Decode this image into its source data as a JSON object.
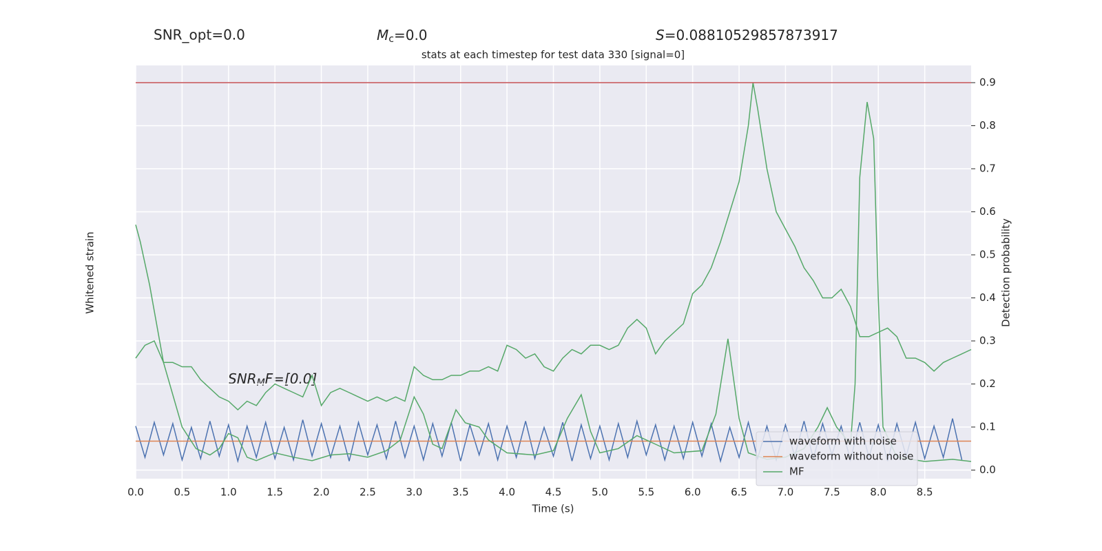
{
  "chart_data": {
    "type": "line",
    "top_labels": {
      "snr_opt": "SNR_opt=0.0",
      "mc": {
        "symbol": "M",
        "sub": "c",
        "rest": "=0.0"
      },
      "s": {
        "symbol": "S",
        "rest": "=0.08810529857873917"
      }
    },
    "title": "stats at each timestep for test data 330 [signal=0]",
    "xlabel": "Time (s)",
    "ylabel": "Whitened strain",
    "y2label": "Detection probability",
    "annotation": {
      "symbol": "SNR",
      "sub": "M",
      "rest": "F=[0.0]"
    },
    "xlim": [
      0,
      9
    ],
    "xticks": [
      {
        "value": 0,
        "label": "0.0"
      },
      0.5,
      {
        "value": 1,
        "label": "1.0"
      },
      1.5,
      {
        "value": 2,
        "label": "2.0"
      },
      2.5,
      {
        "value": 3,
        "label": "3.0"
      },
      3.5,
      {
        "value": 4,
        "label": "4.0"
      },
      4.5,
      {
        "value": 5,
        "label": "5.0"
      },
      5.5,
      {
        "value": 6,
        "label": "6.0"
      },
      6.5,
      {
        "value": 7,
        "label": "7.0"
      },
      7.5,
      {
        "value": 8,
        "label": "8.0"
      },
      8.5
    ],
    "ylim": [
      -3,
      30
    ],
    "y2lim": [
      -0.02,
      0.94
    ],
    "y2ticks": [
      {
        "value": 0,
        "label": "0.0"
      },
      0.1,
      0.2,
      0.3,
      0.4,
      0.5,
      0.6,
      0.7,
      0.8,
      0.9
    ],
    "grid": true,
    "legend": "lower right",
    "threshold": {
      "value": 0.9,
      "color": "#c44e52"
    },
    "series": [
      {
        "name": "waveform with noise",
        "color": "#4c72b0",
        "axis": "y",
        "x": [
          0,
          0.1,
          0.2,
          0.3,
          0.4,
          0.5,
          0.6,
          0.7,
          0.8,
          0.9,
          1,
          1.1,
          1.2,
          1.3,
          1.4,
          1.5,
          1.6,
          1.7,
          1.8,
          1.9,
          2,
          2.1,
          2.2,
          2.3,
          2.4,
          2.5,
          2.6,
          2.7,
          2.8,
          2.9,
          3,
          3.1,
          3.2,
          3.3,
          3.4,
          3.5,
          3.6,
          3.7,
          3.8,
          3.9,
          4,
          4.1,
          4.2,
          4.3,
          4.4,
          4.5,
          4.6,
          4.7,
          4.8,
          4.9,
          5,
          5.1,
          5.2,
          5.3,
          5.4,
          5.5,
          5.6,
          5.7,
          5.8,
          5.9,
          6,
          6.1,
          6.2,
          6.3,
          6.4,
          6.5,
          6.6,
          6.7,
          6.8,
          6.9,
          7,
          7.1,
          7.2,
          7.3,
          7.4,
          7.5,
          7.6,
          7.7,
          7.8,
          7.9,
          8,
          8.1,
          8.2,
          8.3,
          8.4,
          8.5,
          8.6,
          8.7,
          8.8,
          8.9
        ],
        "values": [
          1.2,
          -1.3,
          1.5,
          -1.1,
          1.4,
          -1.5,
          1.1,
          -1.4,
          1.6,
          -1.2,
          1.3,
          -1.6,
          1.2,
          -1.3,
          1.5,
          -1.4,
          1.1,
          -1.5,
          1.7,
          -1.2,
          1.4,
          -1.3,
          1.2,
          -1.6,
          1.5,
          -1.1,
          1.3,
          -1.4,
          1.6,
          -1.3,
          1.2,
          -1.5,
          1.4,
          -1.2,
          1.5,
          -1.6,
          1.3,
          -1.1,
          1.4,
          -1.5,
          1.2,
          -1.3,
          1.6,
          -1.4,
          1.1,
          -1.2,
          1.5,
          -1.6,
          1.3,
          -1.4,
          1.2,
          -1.5,
          1.4,
          -1.3,
          1.6,
          -1.1,
          1.3,
          -1.5,
          1.2,
          -1.4,
          1.5,
          -1.2,
          1.4,
          -1.6,
          1.1,
          -1.3,
          1.5,
          -1.4,
          1.2,
          -1.5,
          1.3,
          -1.2,
          1.6,
          -1.4,
          1.4,
          -1.1,
          1.2,
          -1.5,
          1.5,
          -1.3,
          1.3,
          -1.6,
          1.4,
          -1.2,
          1.5,
          -1.4,
          1.2,
          -1.3,
          1.8,
          -1.5
        ]
      },
      {
        "name": "waveform without noise",
        "color": "#dd8452",
        "axis": "y",
        "x": [
          0,
          9
        ],
        "values": [
          0,
          0
        ]
      },
      {
        "name": "MF",
        "color": "#55a868",
        "axis": "y2",
        "x": [
          0,
          0.05,
          0.15,
          0.3,
          0.5,
          0.65,
          0.8,
          0.9,
          1,
          1.1,
          1.2,
          1.3,
          1.5,
          1.7,
          1.9,
          2.1,
          2.3,
          2.5,
          2.7,
          2.85,
          3,
          3.1,
          3.2,
          3.3,
          3.45,
          3.55,
          3.7,
          3.8,
          4,
          4.3,
          4.5,
          4.65,
          4.8,
          4.9,
          5,
          5.2,
          5.4,
          5.6,
          5.8,
          6.1,
          6.25,
          6.38,
          6.5,
          6.6,
          6.8,
          7,
          7.2,
          7.35,
          7.45,
          7.55,
          7.7,
          7.75,
          7.8,
          7.88,
          7.95,
          8,
          8.05,
          8.2,
          8.5,
          8.8,
          9
        ],
        "values": [
          0.57,
          0.53,
          0.43,
          0.25,
          0.1,
          0.05,
          0.035,
          0.05,
          0.085,
          0.075,
          0.03,
          0.022,
          0.04,
          0.03,
          0.022,
          0.035,
          0.038,
          0.03,
          0.045,
          0.07,
          0.17,
          0.13,
          0.06,
          0.05,
          0.14,
          0.11,
          0.1,
          0.07,
          0.04,
          0.035,
          0.045,
          0.12,
          0.175,
          0.09,
          0.04,
          0.05,
          0.08,
          0.06,
          0.04,
          0.045,
          0.13,
          0.305,
          0.12,
          0.04,
          0.025,
          0.03,
          0.05,
          0.1,
          0.145,
          0.1,
          0.06,
          0.2,
          0.68,
          0.855,
          0.77,
          0.4,
          0.1,
          0.03,
          0.02,
          0.025,
          0.02
        ]
      }
    ],
    "detection_curve": {
      "color": "#55a868",
      "x": [
        0,
        0.1,
        0.2,
        0.3,
        0.4,
        0.5,
        0.6,
        0.7,
        0.8,
        0.9,
        1,
        1.1,
        1.2,
        1.3,
        1.4,
        1.5,
        1.6,
        1.7,
        1.8,
        1.9,
        2,
        2.1,
        2.2,
        2.3,
        2.4,
        2.5,
        2.6,
        2.7,
        2.8,
        2.9,
        3,
        3.1,
        3.2,
        3.3,
        3.4,
        3.5,
        3.6,
        3.7,
        3.8,
        3.9,
        4,
        4.1,
        4.2,
        4.3,
        4.4,
        4.5,
        4.6,
        4.7,
        4.8,
        4.9,
        5,
        5.1,
        5.2,
        5.3,
        5.4,
        5.5,
        5.6,
        5.7,
        5.8,
        5.9,
        6,
        6.1,
        6.2,
        6.3,
        6.4,
        6.5,
        6.6,
        6.65,
        6.7,
        6.8,
        6.9,
        7,
        7.1,
        7.2,
        7.3,
        7.4,
        7.5,
        7.6,
        7.7,
        7.8,
        7.9,
        8,
        8.1,
        8.2,
        8.3,
        8.4,
        8.5,
        8.6,
        8.7,
        8.8,
        8.9,
        9
      ],
      "values": [
        0.26,
        0.29,
        0.3,
        0.25,
        0.25,
        0.24,
        0.24,
        0.21,
        0.19,
        0.17,
        0.16,
        0.14,
        0.16,
        0.15,
        0.18,
        0.2,
        0.19,
        0.18,
        0.17,
        0.22,
        0.15,
        0.18,
        0.19,
        0.18,
        0.17,
        0.16,
        0.17,
        0.16,
        0.17,
        0.16,
        0.24,
        0.22,
        0.21,
        0.21,
        0.22,
        0.22,
        0.23,
        0.23,
        0.24,
        0.23,
        0.29,
        0.28,
        0.26,
        0.27,
        0.24,
        0.23,
        0.26,
        0.28,
        0.27,
        0.29,
        0.29,
        0.28,
        0.29,
        0.33,
        0.35,
        0.33,
        0.27,
        0.3,
        0.32,
        0.34,
        0.41,
        0.43,
        0.47,
        0.53,
        0.6,
        0.67,
        0.8,
        0.9,
        0.84,
        0.7,
        0.6,
        0.56,
        0.52,
        0.47,
        0.44,
        0.4,
        0.4,
        0.42,
        0.38,
        0.31,
        0.31,
        0.32,
        0.33,
        0.31,
        0.26,
        0.26,
        0.25,
        0.23,
        0.25,
        0.26,
        0.27,
        0.28
      ]
    }
  }
}
